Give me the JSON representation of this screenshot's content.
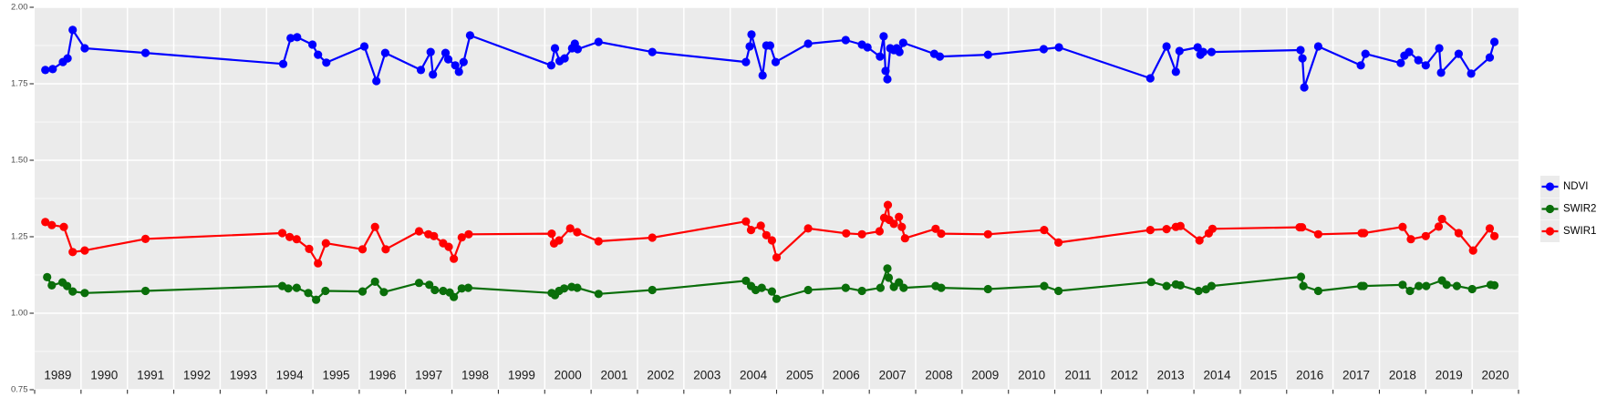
{
  "chart_data": {
    "type": "line",
    "title": "",
    "xlabel": "",
    "ylabel": "",
    "grid": "on",
    "panel_bg_color": "#EBEBEB",
    "grid_color": "#FFFFFF",
    "y_axis": {
      "range": [
        0.75,
        2.0
      ],
      "major_ticks": [
        2.0,
        1.75,
        1.5,
        1.25,
        1.0,
        0.75
      ],
      "tick_labels": [
        "2.00",
        "1.75",
        "1.50",
        "1.25",
        "1.00",
        "0.75"
      ],
      "minor_ticks": [
        1.875,
        1.625,
        1.375,
        1.125,
        0.875
      ],
      "label_color": "#4D4D4D"
    },
    "x_axis": {
      "range": [
        1989,
        2021
      ],
      "gridline_years": [
        1990,
        1991,
        1992,
        1993,
        1994,
        1995,
        1996,
        1997,
        1998,
        1999,
        2000,
        2001,
        2002,
        2003,
        2004,
        2005,
        2006,
        2007,
        2008,
        2009,
        2010,
        2011,
        2012,
        2013,
        2014,
        2015,
        2016,
        2017,
        2018,
        2019,
        2020
      ],
      "tick_years": [
        1989,
        1990,
        1991,
        1992,
        1993,
        1994,
        1995,
        1996,
        1997,
        1998,
        1999,
        2000,
        2001,
        2002,
        2003,
        2004,
        2005,
        2006,
        2007,
        2008,
        2009,
        2010,
        2011,
        2012,
        2013,
        2014,
        2015,
        2016,
        2017,
        2018,
        2019,
        2020,
        2021
      ],
      "year_labels": [
        "1989",
        "1990",
        "1991",
        "1992",
        "1993",
        "1994",
        "1995",
        "1996",
        "1997",
        "1998",
        "1999",
        "2000",
        "2001",
        "2002",
        "2003",
        "2004",
        "2005",
        "2006",
        "2007",
        "2008",
        "2009",
        "2010",
        "2011",
        "2012",
        "2013",
        "2014",
        "2015",
        "2016",
        "2017",
        "2018",
        "2019",
        "2020"
      ],
      "label_color": "#1A1A1A"
    },
    "legend": {
      "position": "right",
      "key_bg_color": "#EBEBEB",
      "entries": [
        {
          "label": "NDVI",
          "color": "#0000FF"
        },
        {
          "label": "SWIR2",
          "color": "#0A6E0A"
        },
        {
          "label": "SWIR1",
          "color": "#FF0000"
        }
      ]
    },
    "series": [
      {
        "name": "NDVI",
        "color": "#0000FF",
        "points": [
          [
            1989.23,
            1.795
          ],
          [
            1989.39,
            1.798
          ],
          [
            1989.61,
            1.821
          ],
          [
            1989.71,
            1.833
          ],
          [
            1989.82,
            1.926
          ],
          [
            1990.08,
            1.866
          ],
          [
            1991.39,
            1.851
          ],
          [
            1994.36,
            1.815
          ],
          [
            1994.52,
            1.899
          ],
          [
            1994.66,
            1.902
          ],
          [
            1994.99,
            1.878
          ],
          [
            1995.11,
            1.845
          ],
          [
            1995.29,
            1.819
          ],
          [
            1996.11,
            1.872
          ],
          [
            1996.37,
            1.759
          ],
          [
            1996.56,
            1.851
          ],
          [
            1997.33,
            1.795
          ],
          [
            1997.54,
            1.854
          ],
          [
            1997.59,
            1.78
          ],
          [
            1997.86,
            1.851
          ],
          [
            1997.92,
            1.83
          ],
          [
            1998.07,
            1.81
          ],
          [
            1998.15,
            1.789
          ],
          [
            1998.25,
            1.821
          ],
          [
            1998.39,
            1.908
          ],
          [
            2000.14,
            1.81
          ],
          [
            2000.22,
            1.866
          ],
          [
            2000.32,
            1.824
          ],
          [
            2000.43,
            1.833
          ],
          [
            2000.59,
            1.866
          ],
          [
            2000.65,
            1.881
          ],
          [
            2000.71,
            1.863
          ],
          [
            2001.16,
            1.887
          ],
          [
            2002.32,
            1.854
          ],
          [
            2004.34,
            1.821
          ],
          [
            2004.42,
            1.872
          ],
          [
            2004.46,
            1.911
          ],
          [
            2004.7,
            1.777
          ],
          [
            2004.78,
            1.875
          ],
          [
            2004.86,
            1.875
          ],
          [
            2004.98,
            1.821
          ],
          [
            2005.68,
            1.881
          ],
          [
            2006.49,
            1.893
          ],
          [
            2006.84,
            1.878
          ],
          [
            2006.96,
            1.869
          ],
          [
            2007.23,
            1.839
          ],
          [
            2007.31,
            1.905
          ],
          [
            2007.35,
            1.792
          ],
          [
            2007.39,
            1.765
          ],
          [
            2007.45,
            1.866
          ],
          [
            2007.53,
            1.86
          ],
          [
            2007.59,
            1.866
          ],
          [
            2007.65,
            1.854
          ],
          [
            2007.73,
            1.884
          ],
          [
            2008.4,
            1.848
          ],
          [
            2008.52,
            1.839
          ],
          [
            2009.56,
            1.845
          ],
          [
            2010.76,
            1.863
          ],
          [
            2011.09,
            1.869
          ],
          [
            2013.06,
            1.768
          ],
          [
            2013.41,
            1.872
          ],
          [
            2013.61,
            1.789
          ],
          [
            2013.69,
            1.857
          ],
          [
            2014.08,
            1.869
          ],
          [
            2014.14,
            1.845
          ],
          [
            2014.2,
            1.854
          ],
          [
            2014.38,
            1.854
          ],
          [
            2016.3,
            1.86
          ],
          [
            2016.34,
            1.833
          ],
          [
            2016.38,
            1.738
          ],
          [
            2016.68,
            1.872
          ],
          [
            2017.6,
            1.81
          ],
          [
            2017.7,
            1.848
          ],
          [
            2018.46,
            1.818
          ],
          [
            2018.54,
            1.842
          ],
          [
            2018.64,
            1.854
          ],
          [
            2018.84,
            1.827
          ],
          [
            2019.0,
            1.81
          ],
          [
            2019.29,
            1.866
          ],
          [
            2019.33,
            1.786
          ],
          [
            2019.71,
            1.848
          ],
          [
            2019.98,
            1.783
          ],
          [
            2020.38,
            1.836
          ],
          [
            2020.48,
            1.887
          ]
        ]
      },
      {
        "name": "SWIR2",
        "color": "#0A6E0A",
        "points": [
          [
            1989.27,
            1.118
          ],
          [
            1989.37,
            1.091
          ],
          [
            1989.6,
            1.101
          ],
          [
            1989.7,
            1.089
          ],
          [
            1989.82,
            1.071
          ],
          [
            1990.08,
            1.066
          ],
          [
            1991.39,
            1.073
          ],
          [
            1994.34,
            1.089
          ],
          [
            1994.47,
            1.081
          ],
          [
            1994.65,
            1.083
          ],
          [
            1994.9,
            1.066
          ],
          [
            1995.07,
            1.044
          ],
          [
            1995.27,
            1.073
          ],
          [
            1996.07,
            1.071
          ],
          [
            1996.34,
            1.103
          ],
          [
            1996.53,
            1.069
          ],
          [
            1997.29,
            1.099
          ],
          [
            1997.51,
            1.093
          ],
          [
            1997.63,
            1.076
          ],
          [
            1997.81,
            1.073
          ],
          [
            1997.95,
            1.068
          ],
          [
            1998.04,
            1.053
          ],
          [
            1998.21,
            1.081
          ],
          [
            1998.35,
            1.083
          ],
          [
            2000.15,
            1.066
          ],
          [
            2000.22,
            1.059
          ],
          [
            2000.31,
            1.073
          ],
          [
            2000.42,
            1.081
          ],
          [
            2000.58,
            1.086
          ],
          [
            2000.7,
            1.083
          ],
          [
            2001.16,
            1.063
          ],
          [
            2002.32,
            1.076
          ],
          [
            2004.34,
            1.106
          ],
          [
            2004.45,
            1.089
          ],
          [
            2004.55,
            1.076
          ],
          [
            2004.68,
            1.083
          ],
          [
            2004.9,
            1.071
          ],
          [
            2005.0,
            1.047
          ],
          [
            2005.68,
            1.076
          ],
          [
            2006.49,
            1.083
          ],
          [
            2006.84,
            1.073
          ],
          [
            2007.24,
            1.083
          ],
          [
            2007.39,
            1.146
          ],
          [
            2007.42,
            1.116
          ],
          [
            2007.53,
            1.086
          ],
          [
            2007.64,
            1.101
          ],
          [
            2007.74,
            1.083
          ],
          [
            2008.43,
            1.089
          ],
          [
            2008.55,
            1.083
          ],
          [
            2009.56,
            1.079
          ],
          [
            2010.77,
            1.089
          ],
          [
            2011.08,
            1.073
          ],
          [
            2013.08,
            1.102
          ],
          [
            2013.41,
            1.089
          ],
          [
            2013.61,
            1.094
          ],
          [
            2013.71,
            1.091
          ],
          [
            2014.1,
            1.073
          ],
          [
            2014.26,
            1.078
          ],
          [
            2014.38,
            1.089
          ],
          [
            2016.31,
            1.119
          ],
          [
            2016.36,
            1.089
          ],
          [
            2016.68,
            1.073
          ],
          [
            2017.61,
            1.089
          ],
          [
            2017.66,
            1.089
          ],
          [
            2018.5,
            1.093
          ],
          [
            2018.66,
            1.073
          ],
          [
            2018.85,
            1.089
          ],
          [
            2019.01,
            1.089
          ],
          [
            2019.35,
            1.107
          ],
          [
            2019.45,
            1.093
          ],
          [
            2019.67,
            1.089
          ],
          [
            2020.0,
            1.079
          ],
          [
            2020.4,
            1.093
          ],
          [
            2020.48,
            1.091
          ]
        ]
      },
      {
        "name": "SWIR1",
        "color": "#FF0000",
        "points": [
          [
            1989.23,
            1.298
          ],
          [
            1989.37,
            1.288
          ],
          [
            1989.63,
            1.282
          ],
          [
            1989.82,
            1.2
          ],
          [
            1990.08,
            1.205
          ],
          [
            1991.39,
            1.243
          ],
          [
            1994.34,
            1.262
          ],
          [
            1994.5,
            1.249
          ],
          [
            1994.65,
            1.242
          ],
          [
            1994.92,
            1.21
          ],
          [
            1995.11,
            1.163
          ],
          [
            1995.28,
            1.229
          ],
          [
            1996.07,
            1.209
          ],
          [
            1996.34,
            1.282
          ],
          [
            1996.57,
            1.209
          ],
          [
            1997.29,
            1.268
          ],
          [
            1997.49,
            1.258
          ],
          [
            1997.61,
            1.252
          ],
          [
            1997.81,
            1.229
          ],
          [
            1997.93,
            1.217
          ],
          [
            1998.04,
            1.178
          ],
          [
            1998.21,
            1.248
          ],
          [
            1998.36,
            1.258
          ],
          [
            2000.15,
            1.26
          ],
          [
            2000.2,
            1.228
          ],
          [
            2000.31,
            1.238
          ],
          [
            2000.55,
            1.277
          ],
          [
            2000.7,
            1.265
          ],
          [
            2001.16,
            1.235
          ],
          [
            2002.32,
            1.247
          ],
          [
            2004.34,
            1.3
          ],
          [
            2004.45,
            1.272
          ],
          [
            2004.66,
            1.286
          ],
          [
            2004.78,
            1.255
          ],
          [
            2004.9,
            1.238
          ],
          [
            2005.0,
            1.182
          ],
          [
            2005.68,
            1.277
          ],
          [
            2006.5,
            1.261
          ],
          [
            2006.84,
            1.258
          ],
          [
            2007.22,
            1.268
          ],
          [
            2007.32,
            1.312
          ],
          [
            2007.4,
            1.354
          ],
          [
            2007.43,
            1.305
          ],
          [
            2007.53,
            1.292
          ],
          [
            2007.64,
            1.315
          ],
          [
            2007.7,
            1.282
          ],
          [
            2007.77,
            1.245
          ],
          [
            2008.43,
            1.276
          ],
          [
            2008.55,
            1.26
          ],
          [
            2009.56,
            1.258
          ],
          [
            2010.77,
            1.272
          ],
          [
            2011.08,
            1.231
          ],
          [
            2013.06,
            1.272
          ],
          [
            2013.41,
            1.275
          ],
          [
            2013.61,
            1.282
          ],
          [
            2013.71,
            1.285
          ],
          [
            2014.12,
            1.238
          ],
          [
            2014.32,
            1.261
          ],
          [
            2014.4,
            1.276
          ],
          [
            2016.28,
            1.281
          ],
          [
            2016.33,
            1.281
          ],
          [
            2016.68,
            1.258
          ],
          [
            2017.62,
            1.262
          ],
          [
            2017.67,
            1.262
          ],
          [
            2018.5,
            1.282
          ],
          [
            2018.68,
            1.242
          ],
          [
            2019.0,
            1.252
          ],
          [
            2019.28,
            1.283
          ],
          [
            2019.35,
            1.308
          ],
          [
            2019.71,
            1.262
          ],
          [
            2020.02,
            1.205
          ],
          [
            2020.38,
            1.277
          ],
          [
            2020.48,
            1.252
          ]
        ]
      }
    ]
  }
}
